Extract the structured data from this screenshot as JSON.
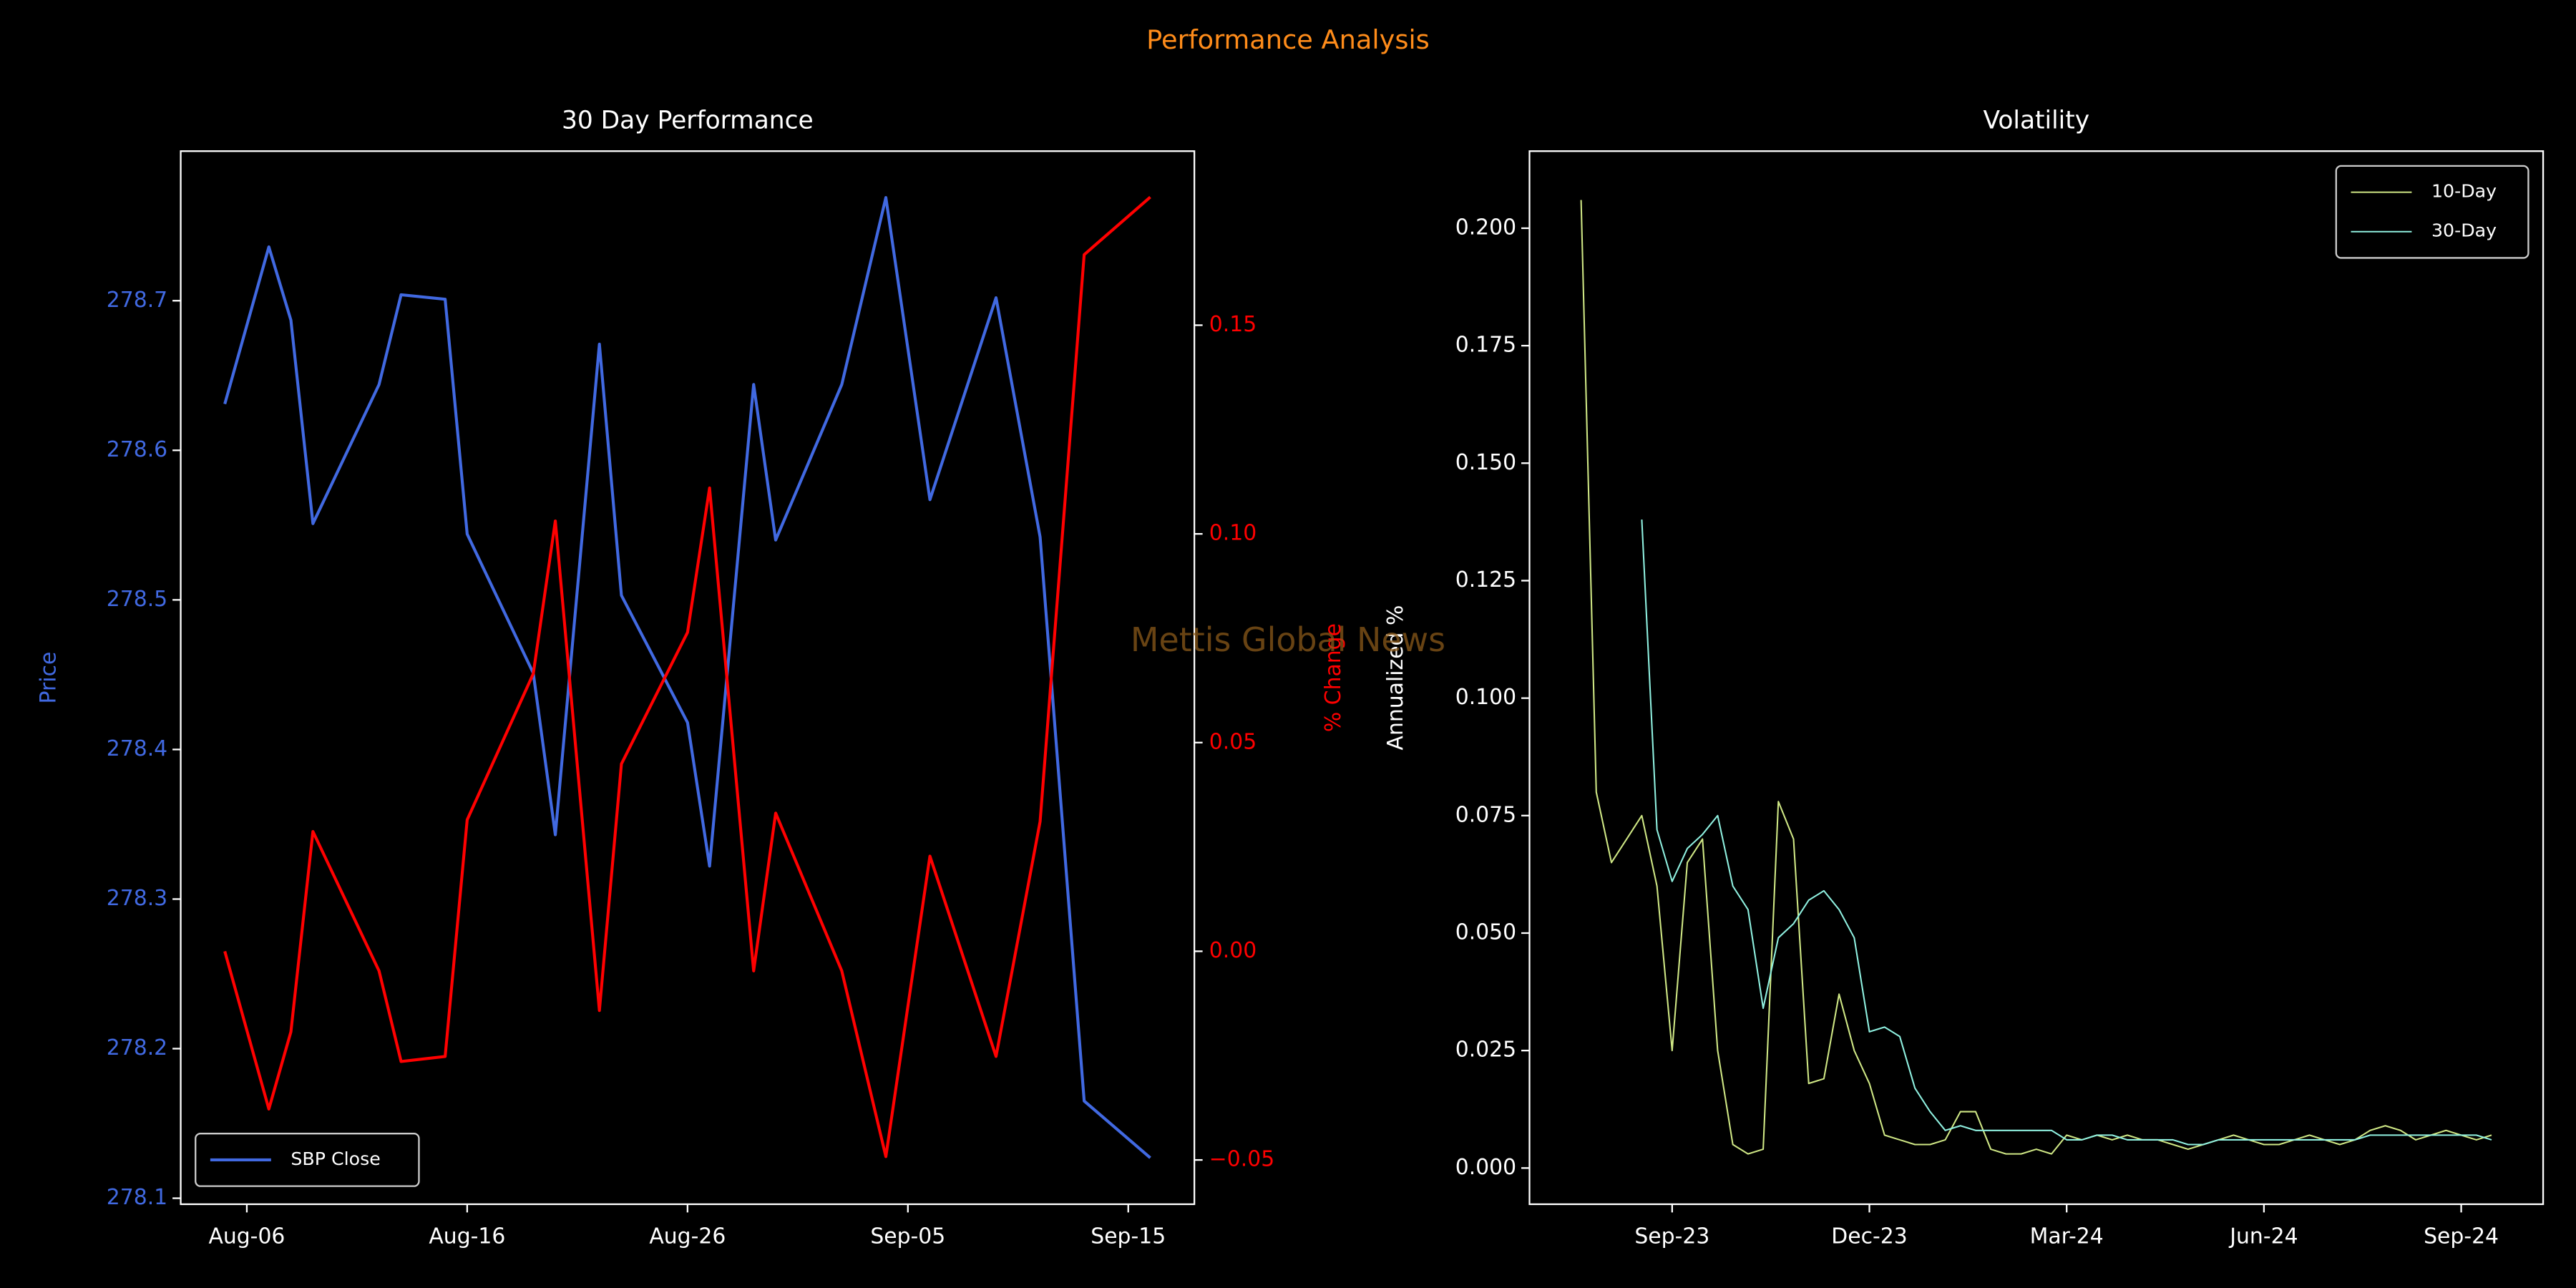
{
  "title": "Performance Analysis",
  "watermark": "Mettis Global News",
  "chart_data": [
    {
      "type": "line",
      "title": "30 Day Performance",
      "ylabel": "Price",
      "y2label": "% Change",
      "x": [
        "Aug-05",
        "Aug-07",
        "Aug-08",
        "Aug-09",
        "Aug-12",
        "Aug-13",
        "Aug-15",
        "Aug-16",
        "Aug-19",
        "Aug-20",
        "Aug-22",
        "Aug-23",
        "Aug-26",
        "Aug-27",
        "Aug-29",
        "Aug-30",
        "Sep-02",
        "Sep-04",
        "Sep-06",
        "Sep-09",
        "Sep-11",
        "Sep-13",
        "Sep-16"
      ],
      "xlim": [
        "Aug-03",
        "Sep-18"
      ],
      "xticks": [
        "Aug-06",
        "Aug-16",
        "Aug-26",
        "Sep-05",
        "Sep-15"
      ],
      "series": [
        {
          "name": "SBP Close",
          "color": "#4169e1",
          "values": [
            278.631,
            278.736,
            278.687,
            278.551,
            278.644,
            278.704,
            278.701,
            278.544,
            278.451,
            278.343,
            278.671,
            278.503,
            278.418,
            278.322,
            278.644,
            278.54,
            278.644,
            278.769,
            278.567,
            278.702,
            278.542,
            278.165,
            278.127
          ]
        },
        {
          "color": "#ff0000",
          "axis": "y2",
          "values": [
            0.0,
            -0.0378,
            -0.0193,
            0.0287,
            -0.0047,
            -0.0264,
            -0.0252,
            0.0315,
            0.0665,
            0.1031,
            -0.0142,
            0.0449,
            0.0764,
            0.111,
            -0.0047,
            0.0331,
            -0.0047,
            -0.0492,
            0.0228,
            -0.0252,
            0.0311,
            0.1669,
            0.1807
          ]
        }
      ],
      "ylim": [
        278.096,
        278.8
      ],
      "yticks": [
        278.1,
        278.2,
        278.3,
        278.4,
        278.5,
        278.6,
        278.7
      ],
      "y2lim": [
        -0.0606,
        0.1917
      ],
      "y2ticks": [
        {
          "value": -0.05,
          "label": "−0.05"
        },
        {
          "value": 0,
          "label": "0.00"
        },
        {
          "value": 0.05,
          "label": "0.05"
        },
        {
          "value": 0.1,
          "label": "0.10"
        },
        {
          "value": 0.15,
          "label": "0.15"
        }
      ],
      "legend": "lower left",
      "grid": false
    },
    {
      "type": "line",
      "title": "Volatility",
      "ylabel": "Annualized %",
      "categories": [
        null,
        null,
        null,
        null,
        null,
        null,
        "Sep-23",
        null,
        null,
        null,
        null,
        null,
        null,
        null,
        null,
        null,
        null,
        null,
        null,
        "Dec-23",
        null,
        null,
        null,
        null,
        null,
        null,
        null,
        null,
        null,
        null,
        null,
        null,
        "Mar-24",
        null,
        null,
        null,
        null,
        null,
        null,
        null,
        null,
        null,
        null,
        null,
        null,
        "Jun-24",
        null,
        null,
        null,
        null,
        null,
        null,
        null,
        null,
        null,
        null,
        null,
        null,
        "Sep-24",
        null,
        null
      ],
      "series": [
        {
          "name": "10-Day",
          "color": "#cfe785",
          "values": [
            0.206,
            0.08,
            0.065,
            0.07,
            0.075,
            0.06,
            0.025,
            0.065,
            0.07,
            0.025,
            0.005,
            0.003,
            0.004,
            0.078,
            0.07,
            0.018,
            0.019,
            0.037,
            0.025,
            0.018,
            0.007,
            0.006,
            0.005,
            0.005,
            0.006,
            0.012,
            0.012,
            0.004,
            0.003,
            0.003,
            0.004,
            0.003,
            0.007,
            0.006,
            0.007,
            0.006,
            0.007,
            0.006,
            0.006,
            0.005,
            0.004,
            0.005,
            0.006,
            0.007,
            0.006,
            0.005,
            0.005,
            0.006,
            0.007,
            0.006,
            0.005,
            0.006,
            0.008,
            0.009,
            0.008,
            0.006,
            0.007,
            0.008,
            0.007,
            0.006,
            0.007
          ]
        },
        {
          "name": "30-Day",
          "color": "#8ff0e0",
          "values": [
            null,
            null,
            null,
            null,
            0.138,
            0.072,
            0.061,
            0.068,
            0.071,
            0.075,
            0.06,
            0.055,
            0.034,
            0.049,
            0.052,
            0.057,
            0.059,
            0.055,
            0.049,
            0.029,
            0.03,
            0.028,
            0.017,
            0.012,
            0.008,
            0.009,
            0.008,
            0.008,
            0.008,
            0.008,
            0.008,
            0.008,
            0.006,
            0.006,
            0.007,
            0.007,
            0.006,
            0.006,
            0.006,
            0.006,
            0.005,
            0.005,
            0.006,
            0.006,
            0.006,
            0.006,
            0.006,
            0.006,
            0.006,
            0.006,
            0.006,
            0.006,
            0.007,
            0.007,
            0.007,
            0.007,
            0.007,
            0.007,
            0.007,
            0.007,
            0.006
          ]
        }
      ],
      "ylim": [
        -0.0077,
        0.2164
      ],
      "yticks": [
        {
          "value": 0,
          "label": "0.000"
        },
        {
          "value": 0.025,
          "label": "0.025"
        },
        {
          "value": 0.05,
          "label": "0.050"
        },
        {
          "value": 0.075,
          "label": "0.075"
        },
        {
          "value": 0.1,
          "label": "0.100"
        },
        {
          "value": 0.125,
          "label": "0.125"
        },
        {
          "value": 0.15,
          "label": "0.150"
        },
        {
          "value": 0.175,
          "label": "0.175"
        },
        {
          "value": 0.2,
          "label": "0.200"
        }
      ],
      "legend": "upper right",
      "grid": false
    }
  ]
}
